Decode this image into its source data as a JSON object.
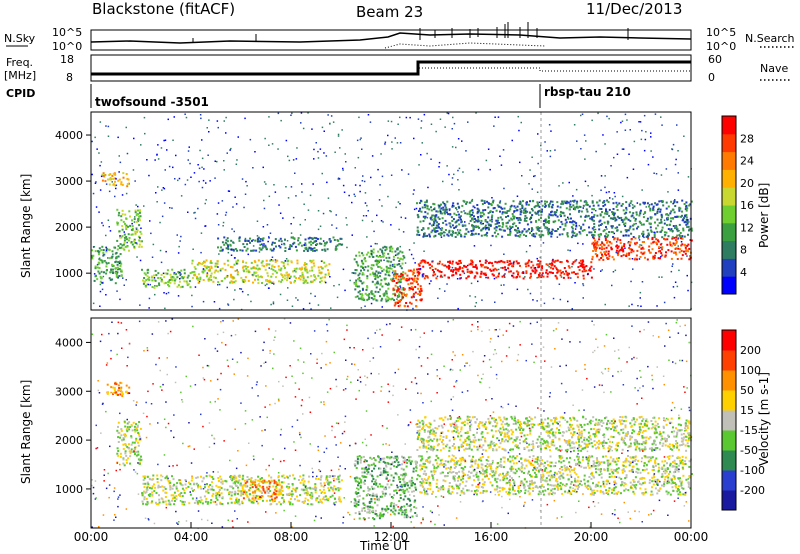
{
  "header": {
    "station": "Blackstone (fitACF)",
    "beam": "Beam 23",
    "date": "11/Dec/2013"
  },
  "noise_panel": {
    "left_label": "N.Sky",
    "left_ticks": [
      "10^5",
      "10^0"
    ],
    "right_ticks": [
      "10^5",
      "10^0"
    ],
    "right_label": "N.Search"
  },
  "freq_panel": {
    "left_label_top": "Freq.",
    "left_label_bottom": "[MHz]",
    "left_ticks": [
      "18",
      "8"
    ],
    "right_ticks": [
      "60",
      "0"
    ],
    "right_label": "Nave"
  },
  "cpid_panel": {
    "label": "CPID",
    "programs": [
      {
        "name": "twofsound -3501",
        "start_hour": 0
      },
      {
        "name": "rbsp-tau 210",
        "start_hour": 18
      }
    ]
  },
  "x_axis": {
    "ticks": [
      "00:00",
      "04:00",
      "08:00",
      "12:00",
      "16:00",
      "20:00",
      "00:00"
    ],
    "label": "Time UT"
  },
  "power_panel": {
    "ylabel": "Slant Range [km]",
    "yticks": [
      "4000",
      "3000",
      "2000",
      "1000"
    ],
    "colorbar_label": "Power [dB]",
    "colorbar_ticks": [
      "28",
      "24",
      "20",
      "16",
      "12",
      "8",
      "4"
    ],
    "colors": [
      "#0000ff",
      "#2040c0",
      "#2e7d60",
      "#3aa040",
      "#6fcf30",
      "#c8d830",
      "#ffb000",
      "#ff7a00",
      "#ff3a00",
      "#ff0000"
    ]
  },
  "velocity_panel": {
    "ylabel": "Slant Range [km]",
    "yticks": [
      "4000",
      "3000",
      "2000",
      "1000"
    ],
    "colorbar_label": "Velocity [m s-1]",
    "colorbar_ticks": [
      "200",
      "100",
      "50",
      "15",
      "-15",
      "-50",
      "-100",
      "-200"
    ],
    "colors": [
      "#1a1aa0",
      "#2a3fd0",
      "#2e8a50",
      "#5ac830",
      "#c0c0b8",
      "#ffd000",
      "#ff9000",
      "#ff4000",
      "#ff0000"
    ]
  },
  "chart_data": {
    "type": "heatmap",
    "x_unit": "hour UT",
    "xlim": [
      0,
      24
    ],
    "ylim_km": [
      200,
      4500
    ],
    "power_bands": [
      {
        "x0": 0,
        "x1": 1.2,
        "r0": 800,
        "r1": 1600,
        "level": 3
      },
      {
        "x0": 0.4,
        "x1": 1.5,
        "r0": 2900,
        "r1": 3200,
        "level": 6
      },
      {
        "x0": 1.0,
        "x1": 2.0,
        "r0": 1500,
        "r1": 2400,
        "level": 4
      },
      {
        "x0": 2.0,
        "x1": 4.0,
        "r0": 700,
        "r1": 1100,
        "level": 4
      },
      {
        "x0": 4.0,
        "x1": 9.5,
        "r0": 800,
        "r1": 1300,
        "level": 5
      },
      {
        "x0": 5.0,
        "x1": 10.0,
        "r0": 1500,
        "r1": 1800,
        "level": 2
      },
      {
        "x0": 10.5,
        "x1": 12.5,
        "r0": 400,
        "r1": 1600,
        "level": 3
      },
      {
        "x0": 12.0,
        "x1": 13.2,
        "r0": 300,
        "r1": 1100,
        "level": 8
      },
      {
        "x0": 13.0,
        "x1": 20.0,
        "r0": 900,
        "r1": 1300,
        "level": 9
      },
      {
        "x0": 20.0,
        "x1": 24.0,
        "r0": 1300,
        "r1": 1800,
        "level": 8
      },
      {
        "x0": 13.0,
        "x1": 24.0,
        "r0": 1800,
        "r1": 2600,
        "level": 2
      }
    ],
    "velocity_bands": [
      {
        "x0": 0.5,
        "x1": 1.5,
        "r0": 2900,
        "r1": 3200,
        "level": 6
      },
      {
        "x0": 1.0,
        "x1": 2.0,
        "r0": 1500,
        "r1": 2400,
        "level": 4
      },
      {
        "x0": 2.0,
        "x1": 10.0,
        "r0": 700,
        "r1": 1300,
        "level": 4
      },
      {
        "x0": 6.0,
        "x1": 7.6,
        "r0": 800,
        "r1": 1200,
        "level": 6
      },
      {
        "x0": 10.5,
        "x1": 13.0,
        "r0": 400,
        "r1": 1700,
        "level": 3
      },
      {
        "x0": 13.0,
        "x1": 24.0,
        "r0": 900,
        "r1": 1700,
        "level": 4
      },
      {
        "x0": 13.0,
        "x1": 24.0,
        "r0": 1800,
        "r1": 2500,
        "level": 4
      }
    ]
  }
}
